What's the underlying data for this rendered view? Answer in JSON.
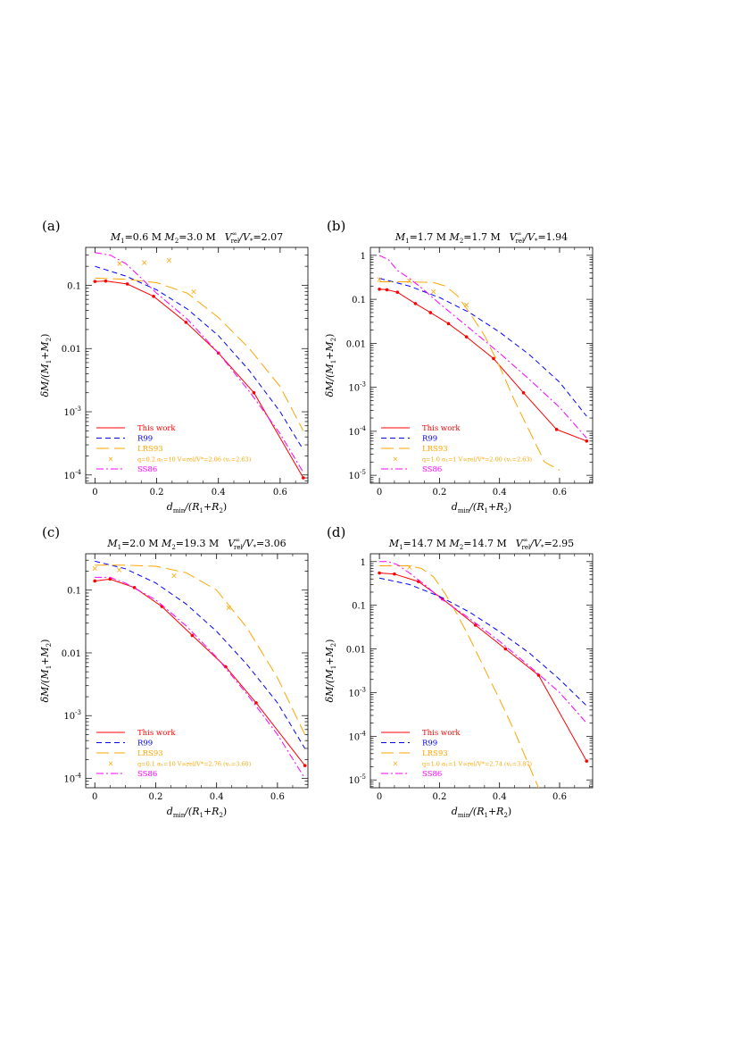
{
  "chart_data": [
    {
      "panel": "(a)",
      "title_parts": {
        "m1_sym": "M",
        "m1_sub": "1",
        "m1_val": "=0.6 M",
        "m2_sym": " M",
        "m2_sub": "2",
        "m2_val": "=3.0 M",
        "v_sym": "V",
        "v_sup": "∞",
        "v_sub": "rel",
        "v_den": "/V",
        "v_den_sub": "*",
        "v_val": "=2.07"
      },
      "type": "line",
      "xlabel_parts": {
        "sym": "d",
        "sub": "min",
        "rest": "/(R",
        "s1": "1",
        "mid": "+R",
        "s2": "2",
        "end": ")"
      },
      "ylabel_parts": {
        "pre": "δM/(M",
        "s1": "1",
        "mid": "+M",
        "s2": "2",
        "end": ")"
      },
      "xlim": [
        -0.03,
        0.69
      ],
      "ylim_log10": [
        -4.13,
        -0.4
      ],
      "yscale": "log",
      "xticks": [
        0,
        0.2,
        0.4,
        0.6
      ],
      "xtick_labels": [
        "0",
        "0.2",
        "0.4",
        "0.6"
      ],
      "yticks": [
        0.1,
        0.01,
        0.001,
        0.0001
      ],
      "ytick_labels": [
        {
          "t": "0.1"
        },
        {
          "t": "0.01"
        },
        {
          "t": "10",
          "sup": "-3"
        },
        {
          "t": "10",
          "sup": "-4"
        }
      ],
      "legend_position": "bottom-left",
      "series": [
        {
          "name": "This work",
          "style": "solid",
          "color": "#ff0000",
          "marker": "dot",
          "x": [
            0,
            0.035,
            0.105,
            0.19,
            0.295,
            0.4,
            0.515,
            0.675
          ],
          "y": [
            0.115,
            0.117,
            0.105,
            0.067,
            0.026,
            0.0085,
            0.002,
            9e-05
          ]
        },
        {
          "name": "R99",
          "style": "dashed",
          "color": "#0000ff",
          "x": [
            0,
            0.1,
            0.2,
            0.3,
            0.4,
            0.5,
            0.6,
            0.675
          ],
          "y": [
            0.2,
            0.14,
            0.085,
            0.042,
            0.016,
            0.0045,
            0.001,
            0.00025
          ]
        },
        {
          "name": "LRS93",
          "style": "longdash",
          "color": "#ffa500",
          "x": [
            0,
            0.1,
            0.2,
            0.3,
            0.4,
            0.5,
            0.6,
            0.675
          ],
          "y": [
            0.13,
            0.125,
            0.11,
            0.075,
            0.031,
            0.01,
            0.0025,
            0.0005
          ]
        },
        {
          "name": "SS86",
          "style": "dashdot",
          "color": "#ff00ff",
          "x": [
            0,
            0.05,
            0.1,
            0.15,
            0.2,
            0.3,
            0.4,
            0.5,
            0.6,
            0.675
          ],
          "y": [
            0.33,
            0.3,
            0.22,
            0.13,
            0.075,
            0.029,
            0.0085,
            0.0021,
            0.00045,
            0.00011
          ]
        },
        {
          "name": "q=0.2 α₁=10 V∞rel/V*=2.06 (vₑ=2.63)",
          "legend_label": "q=0.2  α₁=10  V∞rel/V*=2.06  (vₑ=2.63)",
          "style": "marker-only",
          "color": "#ffa500",
          "marker": "x",
          "x": [
            0.08,
            0.16,
            0.24,
            0.32
          ],
          "y": [
            0.22,
            0.23,
            0.25,
            0.08
          ]
        }
      ]
    },
    {
      "panel": "(b)",
      "title_parts": {
        "m1_sym": "M",
        "m1_sub": "1",
        "m1_val": "=1.7 M",
        "m2_sym": " M",
        "m2_sub": "2",
        "m2_val": "=1.7 M",
        "v_sym": "V",
        "v_sup": "∞",
        "v_sub": "rel",
        "v_den": "/V",
        "v_den_sub": "*",
        "v_val": "=1.94"
      },
      "type": "line",
      "xlabel_parts": {
        "sym": "d",
        "sub": "min",
        "rest": "/(R",
        "s1": "1",
        "mid": "+R",
        "s2": "2",
        "end": ")"
      },
      "ylabel_parts": {
        "pre": "δM/(M",
        "s1": "1",
        "mid": "+M",
        "s2": "2",
        "end": ")"
      },
      "xlim": [
        -0.03,
        0.71
      ],
      "ylim_log10": [
        -5.18,
        0.18
      ],
      "yscale": "log",
      "xticks": [
        0,
        0.2,
        0.4,
        0.6
      ],
      "xtick_labels": [
        "0",
        "0.2",
        "0.4",
        "0.6"
      ],
      "yticks": [
        1,
        0.1,
        0.01,
        0.001,
        0.0001,
        1e-05
      ],
      "ytick_labels": [
        {
          "t": "1"
        },
        {
          "t": "0.1"
        },
        {
          "t": "0.01"
        },
        {
          "t": "10",
          "sup": "-3"
        },
        {
          "t": "10",
          "sup": "-4"
        },
        {
          "t": "10",
          "sup": "-5"
        }
      ],
      "legend_position": "bottom-left",
      "series": [
        {
          "name": "This work",
          "style": "solid",
          "color": "#ff0000",
          "marker": "dot",
          "x": [
            0,
            0.025,
            0.06,
            0.12,
            0.17,
            0.23,
            0.29,
            0.38,
            0.48,
            0.59,
            0.69
          ],
          "y": [
            0.17,
            0.165,
            0.145,
            0.08,
            0.05,
            0.028,
            0.014,
            0.0045,
            0.00075,
            0.00011,
            6e-05
          ]
        },
        {
          "name": "R99",
          "style": "dashed",
          "color": "#0000ff",
          "x": [
            0,
            0.1,
            0.2,
            0.3,
            0.4,
            0.5,
            0.6,
            0.69
          ],
          "y": [
            0.3,
            0.2,
            0.11,
            0.05,
            0.018,
            0.0055,
            0.0013,
            0.00022
          ]
        },
        {
          "name": "LRS93",
          "style": "longdash",
          "color": "#ffa500",
          "x": [
            0,
            0.1,
            0.18,
            0.22,
            0.26,
            0.3,
            0.35,
            0.4,
            0.45,
            0.5,
            0.55,
            0.6
          ],
          "y": [
            0.25,
            0.25,
            0.24,
            0.2,
            0.12,
            0.05,
            0.015,
            0.003,
            0.0005,
            0.0001,
            2e-05,
            1.3e-05
          ]
        },
        {
          "name": "SS86",
          "style": "dashdot",
          "color": "#ff00ff",
          "x": [
            0,
            0.03,
            0.06,
            0.1,
            0.15,
            0.2,
            0.3,
            0.4,
            0.5,
            0.6,
            0.69
          ],
          "y": [
            1.0,
            0.8,
            0.45,
            0.3,
            0.16,
            0.08,
            0.022,
            0.006,
            0.0015,
            0.00035,
            7e-05
          ]
        },
        {
          "name": "q=1.0 α₁=1 V∞rel/V*=2.00 (vₑ=2.63)",
          "legend_label": "q=1.0  α₁=1  V∞rel/V*=2.00  (vₑ=2.63)",
          "style": "marker-only",
          "color": "#ffa500",
          "marker": "x",
          "x": [
            0,
            0.1,
            0.18,
            0.29
          ],
          "y": [
            0.28,
            0.26,
            0.15,
            0.075
          ]
        }
      ]
    },
    {
      "panel": "(c)",
      "title_parts": {
        "m1_sym": "M",
        "m1_sub": "1",
        "m1_val": "=2.0 M",
        "m2_sym": " M",
        "m2_sub": "2",
        "m2_val": "=19.3 M",
        "v_sym": "V",
        "v_sup": "∞",
        "v_sub": "rel",
        "v_den": "/V",
        "v_den_sub": "*",
        "v_val": "=3.06"
      },
      "type": "line",
      "xlabel_parts": {
        "sym": "d",
        "sub": "min",
        "rest": "/(R",
        "s1": "1",
        "mid": "+R",
        "s2": "2",
        "end": ")"
      },
      "ylabel_parts": {
        "pre": "δM/(M",
        "s1": "1",
        "mid": "+M",
        "s2": "2",
        "end": ")"
      },
      "xlim": [
        -0.03,
        0.7
      ],
      "ylim_log10": [
        -4.15,
        -0.42
      ],
      "yscale": "log",
      "xticks": [
        0,
        0.2,
        0.4,
        0.6
      ],
      "xtick_labels": [
        "0",
        "0.2",
        "0.4",
        "0.6"
      ],
      "yticks": [
        0.1,
        0.01,
        0.001,
        0.0001
      ],
      "ytick_labels": [
        {
          "t": "0.1"
        },
        {
          "t": "0.01"
        },
        {
          "t": "10",
          "sup": "-3"
        },
        {
          "t": "10",
          "sup": "-4"
        }
      ],
      "legend_position": "bottom-left",
      "series": [
        {
          "name": "This work",
          "style": "solid",
          "color": "#ff0000",
          "marker": "dot",
          "x": [
            0,
            0.05,
            0.13,
            0.22,
            0.32,
            0.43,
            0.53,
            0.69
          ],
          "y": [
            0.14,
            0.15,
            0.11,
            0.055,
            0.019,
            0.006,
            0.0016,
            0.00016
          ]
        },
        {
          "name": "R99",
          "style": "dashed",
          "color": "#0000ff",
          "x": [
            0,
            0.1,
            0.2,
            0.3,
            0.4,
            0.5,
            0.6,
            0.69
          ],
          "y": [
            0.29,
            0.22,
            0.13,
            0.06,
            0.022,
            0.0065,
            0.0016,
            0.0003
          ]
        },
        {
          "name": "LRS93",
          "style": "longdash",
          "color": "#ffa500",
          "x": [
            0,
            0.1,
            0.2,
            0.3,
            0.4,
            0.5,
            0.6,
            0.69
          ],
          "y": [
            0.25,
            0.25,
            0.24,
            0.19,
            0.1,
            0.025,
            0.004,
            0.0005
          ]
        },
        {
          "name": "SS86",
          "style": "dashdot",
          "color": "#ff00ff",
          "x": [
            0,
            0.05,
            0.1,
            0.2,
            0.3,
            0.4,
            0.5,
            0.6,
            0.69
          ],
          "y": [
            0.16,
            0.16,
            0.13,
            0.07,
            0.027,
            0.0085,
            0.0022,
            0.0005,
            0.0001
          ]
        },
        {
          "name": "q=0.1 α₁=10 V∞rel/V*=2.76 (vₑ=3.60)",
          "legend_label": "q=0.1  α₁=10  V∞rel/V*=2.76  (vₑ=3.60)",
          "style": "marker-only",
          "color": "#ffa500",
          "marker": "x",
          "x": [
            0,
            0.08,
            0.26,
            0.44
          ],
          "y": [
            0.22,
            0.21,
            0.17,
            0.052
          ]
        }
      ]
    },
    {
      "panel": "(d)",
      "title_parts": {
        "m1_sym": "M",
        "m1_sub": "1",
        "m1_val": "=14.7 M",
        "m2_sym": " M",
        "m2_sub": "2",
        "m2_val": "=14.7 M",
        "v_sym": "V",
        "v_sup": "∞",
        "v_sub": "rel",
        "v_den": "/V",
        "v_den_sub": "*",
        "v_val": "=2.95"
      },
      "type": "line",
      "xlabel_parts": {
        "sym": "d",
        "sub": "min",
        "rest": "/(R",
        "s1": "1",
        "mid": "+R",
        "s2": "2",
        "end": ")"
      },
      "ylabel_parts": {
        "pre": "δM/(M",
        "s1": "1",
        "mid": "+M",
        "s2": "2",
        "end": ")"
      },
      "xlim": [
        -0.03,
        0.71
      ],
      "ylim_log10": [
        -5.18,
        0.18
      ],
      "yscale": "log",
      "xticks": [
        0,
        0.2,
        0.4,
        0.6
      ],
      "xtick_labels": [
        "0",
        "0.2",
        "0.4",
        "0.6"
      ],
      "yticks": [
        1,
        0.1,
        0.01,
        0.001,
        0.0001,
        1e-05
      ],
      "ytick_labels": [
        {
          "t": "1"
        },
        {
          "t": "0.1"
        },
        {
          "t": "0.01"
        },
        {
          "t": "10",
          "sup": "-3"
        },
        {
          "t": "10",
          "sup": "-4"
        },
        {
          "t": "10",
          "sup": "-5"
        }
      ],
      "legend_position": "bottom-left",
      "series": [
        {
          "name": "This work",
          "style": "solid",
          "color": "#ff0000",
          "marker": "dot",
          "x": [
            0,
            0.05,
            0.13,
            0.21,
            0.32,
            0.42,
            0.53,
            0.69
          ],
          "y": [
            0.55,
            0.52,
            0.35,
            0.14,
            0.035,
            0.01,
            0.0025,
            2.7e-05
          ]
        },
        {
          "name": "R99",
          "style": "dashed",
          "color": "#0000ff",
          "x": [
            0,
            0.1,
            0.2,
            0.3,
            0.4,
            0.5,
            0.6,
            0.69
          ],
          "y": [
            0.42,
            0.3,
            0.16,
            0.07,
            0.025,
            0.008,
            0.002,
            0.0005
          ]
        },
        {
          "name": "LRS93",
          "style": "longdash",
          "color": "#ffa500",
          "x": [
            0,
            0.1,
            0.14,
            0.18,
            0.22,
            0.26,
            0.3,
            0.35,
            0.4,
            0.45,
            0.5,
            0.53
          ],
          "y": [
            0.8,
            0.8,
            0.7,
            0.45,
            0.18,
            0.06,
            0.018,
            0.0035,
            0.0007,
            0.00013,
            2e-05,
            6.5e-06
          ]
        },
        {
          "name": "SS86",
          "style": "dashdot",
          "color": "#ff00ff",
          "x": [
            0,
            0.03,
            0.06,
            0.1,
            0.15,
            0.2,
            0.3,
            0.4,
            0.5,
            0.6,
            0.69
          ],
          "y": [
            1.0,
            1.0,
            0.85,
            0.55,
            0.3,
            0.15,
            0.05,
            0.015,
            0.004,
            0.001,
            0.0002
          ]
        },
        {
          "name": "q=1.0 α₁=1 V∞rel/V*=2.74 (vₑ=3.87)",
          "legend_label": "q=1.0  α₁=1  V∞rel/V*=2.74  (vₑ=3.87)",
          "style": "marker-only",
          "color": "#ffa500",
          "marker": "x",
          "x": [
            0.1
          ],
          "y": [
            0.75
          ]
        }
      ]
    }
  ]
}
